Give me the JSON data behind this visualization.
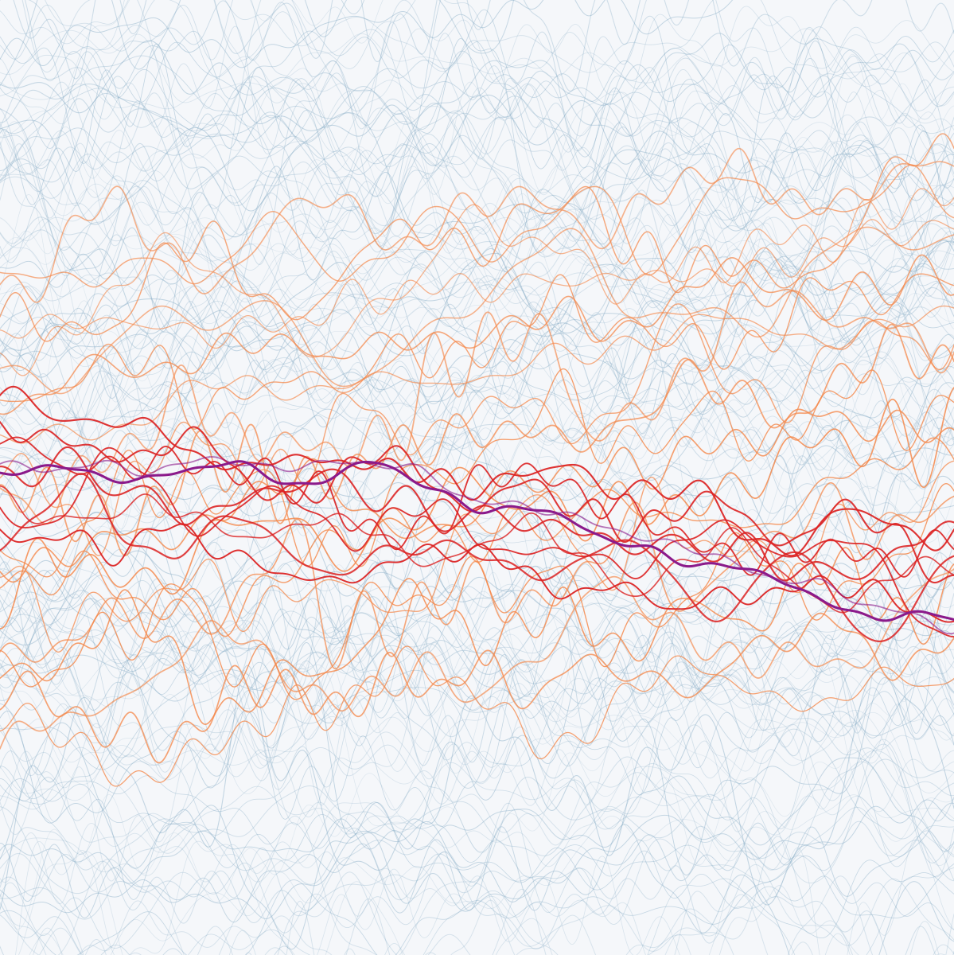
{
  "background_color": "#f5f7fa",
  "blue_color": "#8aafc8",
  "blue_alpha": 0.35,
  "blue_linewidth": 0.6,
  "orange_color": "#f5884a",
  "orange_alpha": 0.8,
  "orange_linewidth": 1.1,
  "red_color": "#dd2222",
  "red_alpha": 0.9,
  "red_linewidth": 1.4,
  "purple_color": "#8b1a8b",
  "purple_alpha": 1.0,
  "purple_linewidth": 2.2,
  "n_blue": 120,
  "n_orange": 22,
  "n_red": 8,
  "seed": 7
}
